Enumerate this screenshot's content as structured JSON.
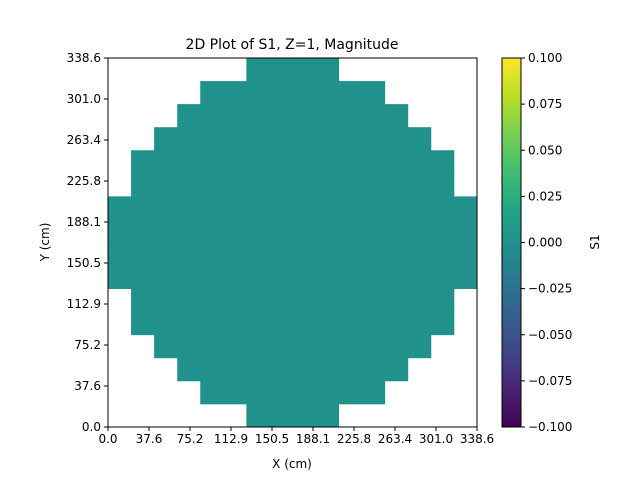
{
  "chart_data": {
    "type": "heatmap",
    "title": "2D Plot of S1, Z=1, Magnitude",
    "xlabel": "X (cm)",
    "ylabel": "Y (cm)",
    "xlim": [
      0.0,
      338.6
    ],
    "ylim": [
      0.0,
      338.6
    ],
    "xticks": [
      "0.0",
      "37.6",
      "75.2",
      "112.9",
      "150.5",
      "188.1",
      "225.8",
      "263.4",
      "301.0",
      "338.6"
    ],
    "yticks": [
      "0.0",
      "37.6",
      "75.2",
      "112.9",
      "150.5",
      "188.1",
      "225.8",
      "263.4",
      "301.0",
      "338.6"
    ],
    "grid": false,
    "colormap": "viridis",
    "fill_color": "#21918c",
    "colorbar": {
      "label": "S1",
      "range": [
        -0.1,
        0.1
      ],
      "ticks": [
        "0.100",
        "0.075",
        "0.050",
        "0.025",
        "0.000",
        "−0.025",
        "−0.050",
        "−0.075",
        "−0.100"
      ]
    },
    "cells": {
      "nx": 16,
      "ny": 16,
      "value": 0.0,
      "row_spans_bottom_to_top": [
        [
          6,
          9
        ],
        [
          4,
          11
        ],
        [
          3,
          12
        ],
        [
          2,
          13
        ],
        [
          1,
          14
        ],
        [
          1,
          14
        ],
        [
          0,
          15
        ],
        [
          0,
          15
        ],
        [
          0,
          15
        ],
        [
          0,
          15
        ],
        [
          1,
          14
        ],
        [
          1,
          14
        ],
        [
          2,
          13
        ],
        [
          3,
          12
        ],
        [
          4,
          11
        ],
        [
          6,
          9
        ]
      ]
    }
  }
}
